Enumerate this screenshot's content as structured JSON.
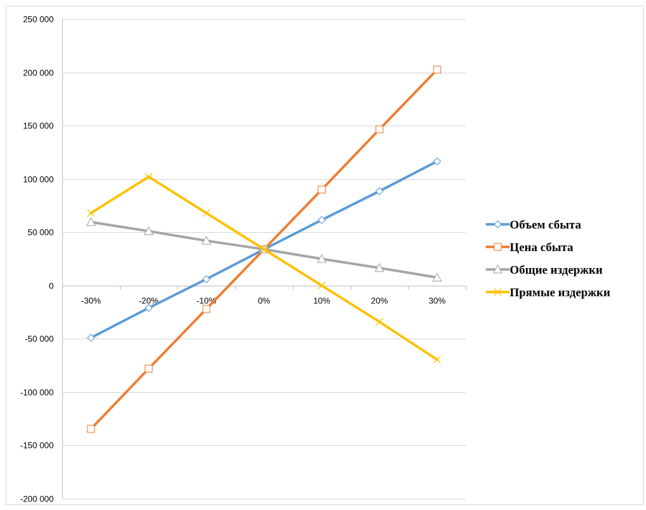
{
  "chart_data": {
    "type": "line",
    "categories": [
      "-30%",
      "-20%",
      "-10%",
      "0%",
      "10%",
      "20%",
      "30%"
    ],
    "ylim": [
      -200000,
      250000
    ],
    "ytick_step": 50000,
    "y_tick_labels": [
      "250 000",
      "200 000",
      "150 000",
      "100 000",
      "50 000",
      "0",
      "-50 000",
      "-100 000",
      "-150 000",
      "-200 000"
    ],
    "grid": true,
    "legend_position": "right",
    "series": [
      {
        "name": "Объем  сбыта",
        "color": "#5B9BD5",
        "marker": "diamond",
        "values": [
          -49000,
          -21000,
          6000,
          34000,
          61500,
          88500,
          116500
        ]
      },
      {
        "name": "Цена сбыта",
        "color": "#ED7D31",
        "marker": "square",
        "values": [
          -134500,
          -78000,
          -22000,
          34000,
          90000,
          146500,
          202500
        ]
      },
      {
        "name": "Общие издержки",
        "color": "#A5A5A5",
        "marker": "triangle",
        "values": [
          59500,
          51000,
          42000,
          34000,
          25000,
          16500,
          7500
        ]
      },
      {
        "name": "Прямые издержки",
        "color": "#FFC000",
        "marker": "x",
        "values": [
          68000,
          102000,
          68000,
          34000,
          0,
          -34000,
          -69500
        ]
      }
    ]
  }
}
